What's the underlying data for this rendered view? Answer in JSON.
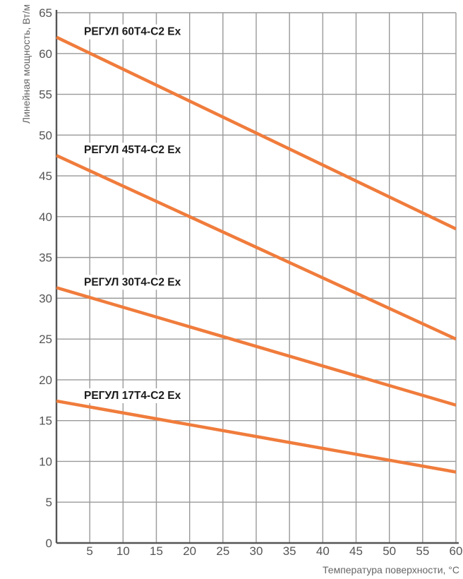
{
  "chart_data": {
    "type": "line",
    "xlabel": "Температура поверхности, °C",
    "ylabel": "Линейная мощность, Вт/м",
    "xlim": [
      0,
      60
    ],
    "ylim": [
      0,
      65
    ],
    "x_ticks": [
      5,
      10,
      15,
      20,
      25,
      30,
      35,
      40,
      45,
      50,
      55,
      60
    ],
    "y_ticks": [
      0,
      5,
      10,
      15,
      20,
      25,
      30,
      35,
      40,
      45,
      50,
      55,
      60,
      65
    ],
    "grid": true,
    "line_color": "#f07c3c",
    "grid_color": "#999999",
    "series": [
      {
        "name": "РЕГУЛ 60Т4-С2 Ex",
        "x": [
          0,
          60
        ],
        "y": [
          62.0,
          38.5
        ]
      },
      {
        "name": "РЕГУЛ 45Т4-С2 Ex",
        "x": [
          0,
          60
        ],
        "y": [
          47.5,
          25.0
        ]
      },
      {
        "name": "РЕГУЛ 30Т4-С2 Ex",
        "x": [
          0,
          60
        ],
        "y": [
          31.3,
          16.9
        ]
      },
      {
        "name": "РЕГУЛ 17Т4-С2 Ex",
        "x": [
          0,
          60
        ],
        "y": [
          17.4,
          8.7
        ]
      }
    ]
  }
}
